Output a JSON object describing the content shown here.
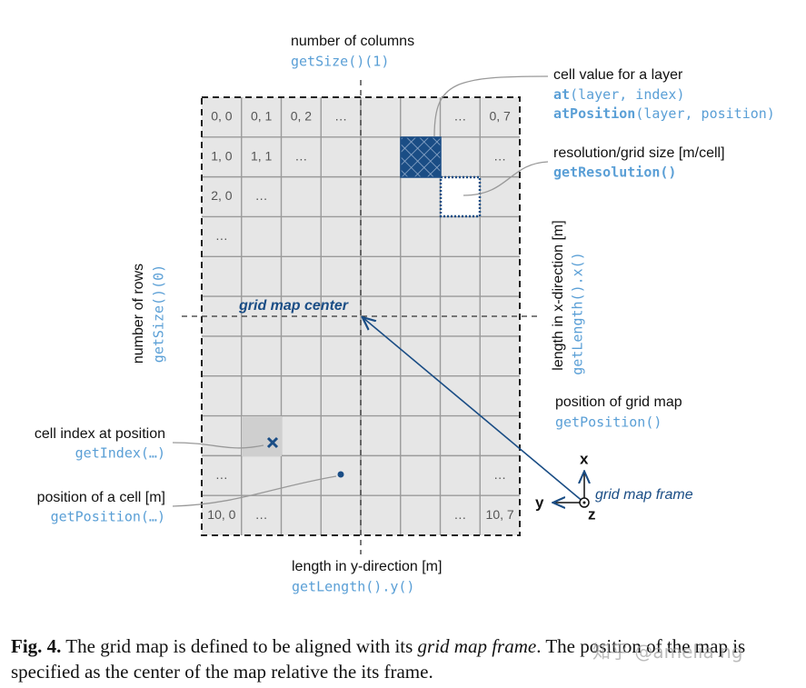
{
  "columns": {
    "label": "number of columns",
    "code": "getSize()(1)"
  },
  "rows": {
    "label": "number of rows",
    "code": "getSize()(0)"
  },
  "layer_value": {
    "label": "cell value for a layer",
    "code_1": {
      "name": "at",
      "args": "(layer, index)"
    },
    "code_2": {
      "name": "atPosition",
      "args": "(layer, position)"
    }
  },
  "resolution": {
    "label": "resolution/grid size [m/cell]",
    "code": "getResolution()"
  },
  "length_x": {
    "label": "length in x-direction [m]",
    "code": "getLength().x()"
  },
  "length_y": {
    "label": "length in y-direction [m]",
    "code": "getLength().y()"
  },
  "center_label": "grid map center",
  "map_position": {
    "label": "position of grid map",
    "code": "getPosition()"
  },
  "cell_index": {
    "label": "cell index at position",
    "code": "getIndex(…)"
  },
  "cell_position": {
    "label": "position of a cell [m]",
    "code": "getPosition(…)"
  },
  "frame": {
    "label": "grid map frame",
    "x": "x",
    "y": "y",
    "z": "z"
  },
  "grid": {
    "rows": [
      [
        "0, 0",
        "0, 1",
        "0, 2",
        "…",
        null,
        null,
        "…",
        "0, 7"
      ],
      [
        "1, 0",
        "1, 1",
        "…",
        null,
        null,
        null,
        null,
        "…"
      ],
      [
        "2, 0",
        "…",
        null,
        null,
        null,
        null,
        null,
        null
      ],
      [
        "…",
        null,
        null,
        null,
        null,
        null,
        null,
        null
      ],
      [
        null,
        null,
        null,
        null,
        null,
        null,
        null,
        null
      ],
      [
        null,
        null,
        null,
        null,
        null,
        null,
        null,
        null
      ],
      [
        null,
        null,
        null,
        null,
        null,
        null,
        null,
        null
      ],
      [
        null,
        null,
        null,
        null,
        null,
        null,
        null,
        null
      ],
      [
        null,
        null,
        null,
        null,
        null,
        null,
        null,
        null
      ],
      [
        "…",
        null,
        null,
        null,
        null,
        null,
        null,
        "…"
      ],
      [
        "10, 0",
        "…",
        null,
        null,
        null,
        null,
        "…",
        "10, 7"
      ]
    ]
  },
  "caption": {
    "label": "Fig. 4.",
    "text_1": "The grid map is defined to be aligned with its ",
    "emphasis": "grid map frame",
    "text_2": ". The position of the map is specified as the center of the map relative the its frame."
  },
  "watermark": "知乎 @amelia ng"
}
